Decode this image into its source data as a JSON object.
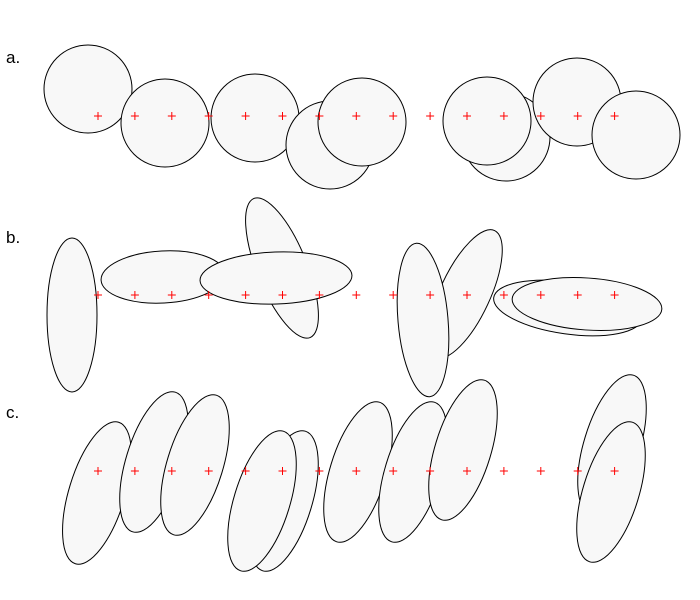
{
  "panels": [
    {
      "label": "a.",
      "shapes": [
        {
          "type": "circle",
          "id": "a1"
        },
        {
          "type": "circle",
          "id": "a2"
        },
        {
          "type": "circle",
          "id": "a3"
        },
        {
          "type": "circle",
          "id": "a4"
        },
        {
          "type": "circle",
          "id": "a5"
        },
        {
          "type": "circle",
          "id": "a6"
        },
        {
          "type": "circle",
          "id": "a7"
        },
        {
          "type": "circle",
          "id": "a8"
        },
        {
          "type": "circle",
          "id": "a9"
        }
      ],
      "marker_count": 15
    },
    {
      "label": "b.",
      "shapes": [
        {
          "type": "ellipse",
          "id": "b1"
        },
        {
          "type": "ellipse",
          "id": "b2"
        },
        {
          "type": "ellipse",
          "id": "b3"
        },
        {
          "type": "ellipse",
          "id": "b4"
        },
        {
          "type": "ellipse",
          "id": "b5"
        },
        {
          "type": "ellipse",
          "id": "b6"
        },
        {
          "type": "ellipse",
          "id": "b7"
        },
        {
          "type": "ellipse",
          "id": "b8"
        }
      ],
      "marker_count": 15
    },
    {
      "label": "c.",
      "shapes": [
        {
          "type": "ellipse",
          "id": "c1"
        },
        {
          "type": "ellipse",
          "id": "c2"
        },
        {
          "type": "ellipse",
          "id": "c3"
        },
        {
          "type": "ellipse",
          "id": "c4"
        },
        {
          "type": "ellipse",
          "id": "c5"
        },
        {
          "type": "ellipse",
          "id": "c6"
        },
        {
          "type": "ellipse",
          "id": "c7"
        },
        {
          "type": "ellipse",
          "id": "c8"
        },
        {
          "type": "ellipse",
          "id": "c9"
        },
        {
          "type": "ellipse",
          "id": "c10"
        }
      ],
      "marker_count": 15
    }
  ],
  "colors": {
    "shape_fill": "#f8f8f8",
    "shape_stroke": "#000000",
    "marker": "#ff0000"
  }
}
